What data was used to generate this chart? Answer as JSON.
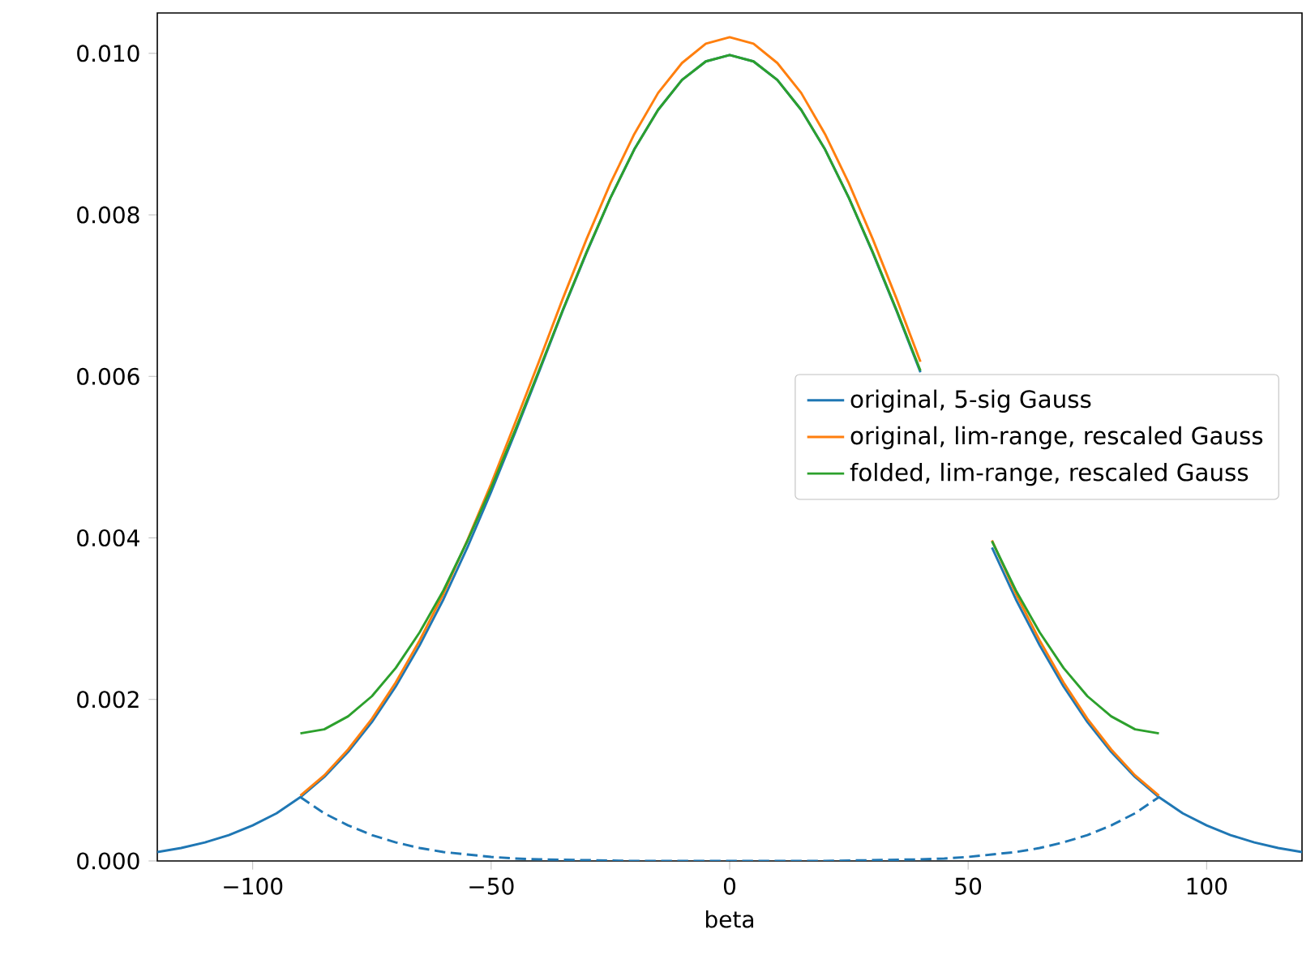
{
  "chart_data": {
    "type": "line",
    "xlabel": "beta",
    "xlim": [
      -120,
      120
    ],
    "ylim": [
      0,
      0.0105
    ],
    "xticks": [
      {
        "value": -100,
        "label": "−100"
      },
      {
        "value": -50,
        "label": "−50"
      },
      0,
      50,
      100
    ],
    "yticks": [
      {
        "value": 0,
        "label": "0.000"
      },
      {
        "value": 0.002,
        "label": "0.002"
      },
      {
        "value": 0.004,
        "label": "0.004"
      },
      {
        "value": 0.006,
        "label": "0.006"
      },
      {
        "value": 0.008,
        "label": "0.008"
      },
      {
        "value": 0.01,
        "label": "0.010"
      }
    ],
    "grid": false,
    "legend": "center right",
    "marker": "none",
    "series": [
      {
        "name": "original, 5-sig Gauss",
        "color": "#1f77b4",
        "line_style": "solid",
        "x": [
          -120,
          -115,
          -110,
          -105,
          -100,
          -95,
          -90,
          -85,
          -80,
          -75,
          -70,
          -65,
          -60,
          -55,
          -50,
          -45,
          -40,
          -35,
          -30,
          -25,
          -20,
          -15,
          -10,
          -5,
          0,
          5,
          10,
          15,
          20,
          25,
          30,
          35,
          40,
          45,
          50,
          55,
          60,
          65,
          70,
          75,
          80,
          85,
          90,
          95,
          100,
          105,
          110,
          115,
          120
        ],
        "values": [
          0.00011,
          0.00016,
          0.00023,
          0.00032,
          0.00044,
          0.00059,
          0.00079,
          0.00104,
          0.00135,
          0.00172,
          0.00216,
          0.00267,
          0.00324,
          0.00388,
          0.00457,
          0.0053,
          0.00605,
          0.00681,
          0.00753,
          0.00821,
          0.00881,
          0.0093,
          0.00967,
          0.0099,
          0.00998,
          0.0099,
          0.00967,
          0.0093,
          0.00881,
          0.00821,
          0.00753,
          0.00681,
          0.00605,
          null,
          null,
          0.00388,
          0.00324,
          0.00267,
          0.00216,
          0.00172,
          0.00135,
          0.00104,
          0.00079,
          0.00059,
          0.00044,
          0.00032,
          0.00023,
          0.00016,
          0.00011
        ]
      },
      {
        "color": "#1f77b4",
        "line_style": "dashed",
        "x": [
          -90,
          -85,
          -80,
          -75,
          -70,
          -65,
          -60,
          -55,
          -50,
          -45,
          -40,
          -30,
          -20,
          0,
          20,
          30,
          40,
          45,
          50,
          55,
          60,
          65,
          70,
          75,
          80,
          85,
          90
        ],
        "values": [
          0.00079,
          0.00059,
          0.00044,
          0.00032,
          0.00023,
          0.00016,
          0.00011,
          8e-05,
          5e-05,
          3e-05,
          2e-05,
          1e-05,
          0,
          0,
          0,
          1e-05,
          2e-05,
          3e-05,
          5e-05,
          8e-05,
          0.00011,
          0.00016,
          0.00023,
          0.00032,
          0.00044,
          0.00059,
          0.00079
        ]
      },
      {
        "name": "original, lim-range, rescaled Gauss",
        "color": "#ff7f0e",
        "line_style": "solid",
        "x": [
          -90,
          -85,
          -80,
          -75,
          -70,
          -65,
          -60,
          -55,
          -50,
          -45,
          -40,
          -35,
          -30,
          -25,
          -20,
          -15,
          -10,
          -5,
          0,
          5,
          10,
          15,
          20,
          25,
          30,
          35,
          40,
          45,
          50,
          55,
          60,
          65,
          70,
          75,
          80,
          85,
          90
        ],
        "values": [
          0.00081,
          0.00106,
          0.00138,
          0.00176,
          0.00221,
          0.00273,
          0.00331,
          0.00397,
          0.00467,
          0.00542,
          0.00618,
          0.00696,
          0.0077,
          0.00839,
          0.009,
          0.00951,
          0.00988,
          0.01012,
          0.0102,
          0.01012,
          0.00988,
          0.00951,
          0.009,
          0.00839,
          0.0077,
          0.00696,
          0.00618,
          null,
          null,
          0.00397,
          0.00331,
          0.00273,
          0.00221,
          0.00176,
          0.00138,
          0.00106,
          0.00081
        ]
      },
      {
        "name": "folded, lim-range, rescaled Gauss",
        "color": "#2ca02c",
        "line_style": "solid",
        "x": [
          -90,
          -85,
          -80,
          -75,
          -70,
          -65,
          -60,
          -55,
          -50,
          -45,
          -40,
          -35,
          -30,
          -25,
          -20,
          -15,
          -10,
          -5,
          0,
          5,
          10,
          15,
          20,
          25,
          30,
          35,
          40,
          45,
          50,
          55,
          60,
          65,
          70,
          75,
          80,
          85,
          90
        ],
        "values": [
          0.00158,
          0.00163,
          0.00179,
          0.00204,
          0.00239,
          0.00283,
          0.00335,
          0.00396,
          0.00462,
          0.00533,
          0.00607,
          0.00682,
          0.00754,
          0.00821,
          0.00881,
          0.0093,
          0.00967,
          0.0099,
          0.00998,
          0.0099,
          0.00967,
          0.0093,
          0.00881,
          0.00821,
          0.00754,
          0.00682,
          0.00607,
          null,
          null,
          0.00396,
          0.00335,
          0.00283,
          0.00239,
          0.00204,
          0.00179,
          0.00163,
          0.00158
        ]
      }
    ]
  }
}
